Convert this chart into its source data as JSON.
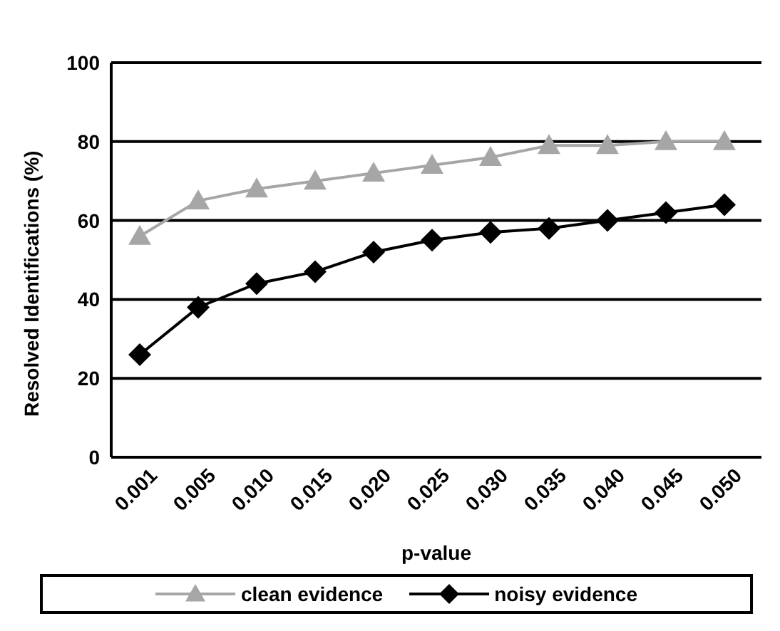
{
  "chart_data": {
    "type": "line",
    "xlabel": "p-value",
    "ylabel": "Resolved Identifications (%)",
    "categories": [
      "0.001",
      "0.005",
      "0.010",
      "0.015",
      "0.020",
      "0.025",
      "0.030",
      "0.035",
      "0.040",
      "0.045",
      "0.050"
    ],
    "series": [
      {
        "name": "clean evidence",
        "color": "#a6a6a6",
        "marker": "triangle",
        "values": [
          56,
          65,
          68,
          70,
          72,
          74,
          76,
          79,
          79,
          80,
          80
        ]
      },
      {
        "name": "noisy evidence",
        "color": "#000000",
        "marker": "diamond",
        "values": [
          26,
          38,
          44,
          47,
          52,
          55,
          57,
          58,
          60,
          62,
          64
        ]
      }
    ],
    "ylim": [
      0,
      100
    ],
    "yticks": [
      0,
      20,
      40,
      60,
      80,
      100
    ],
    "grid": "y",
    "legend": "bottom"
  }
}
